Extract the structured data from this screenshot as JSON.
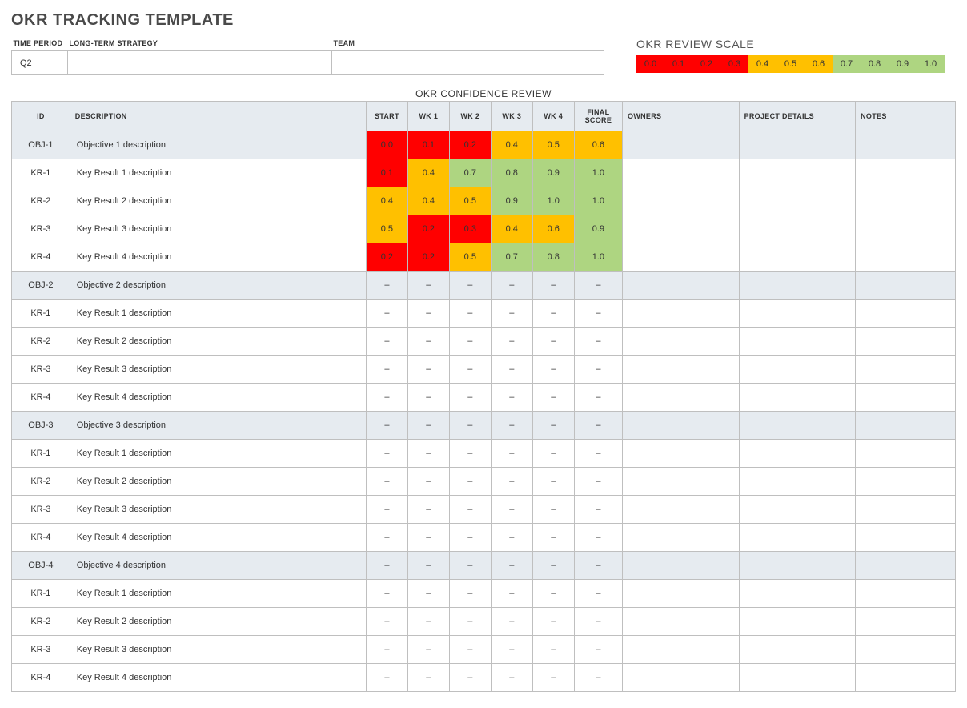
{
  "title": "OKR TRACKING TEMPLATE",
  "meta": {
    "headers": {
      "time_period": "TIME PERIOD",
      "strategy": "LONG-TERM STRATEGY",
      "team": "TEAM"
    },
    "values": {
      "time_period": "Q2",
      "strategy": "",
      "team": ""
    },
    "col_widths": {
      "time_period": 70,
      "strategy": 330,
      "team": 340
    }
  },
  "scale": {
    "title": "OKR REVIEW SCALE",
    "items": [
      {
        "label": "0.0",
        "color": "#ff0000"
      },
      {
        "label": "0.1",
        "color": "#ff0000"
      },
      {
        "label": "0.2",
        "color": "#ff0000"
      },
      {
        "label": "0.3",
        "color": "#ff0000"
      },
      {
        "label": "0.4",
        "color": "#ffc000"
      },
      {
        "label": "0.5",
        "color": "#ffc000"
      },
      {
        "label": "0.6",
        "color": "#ffc000"
      },
      {
        "label": "0.7",
        "color": "#aed581"
      },
      {
        "label": "0.8",
        "color": "#aed581"
      },
      {
        "label": "0.9",
        "color": "#aed581"
      },
      {
        "label": "1.0",
        "color": "#aed581"
      }
    ]
  },
  "confidence_title": "OKR CONFIDENCE REVIEW",
  "columns": {
    "id": "ID",
    "description": "DESCRIPTION",
    "start": "START",
    "wk1": "WK 1",
    "wk2": "WK 2",
    "wk3": "WK 3",
    "wk4": "WK 4",
    "final": "FINAL SCORE",
    "owners": "OWNERS",
    "details": "PROJECT DETAILS",
    "notes": "NOTES"
  },
  "color_map": {
    "red": "#ff0000",
    "orange": "#ffc000",
    "green": "#aed581",
    "none": "transparent"
  },
  "score_thresholds": {
    "red_max": 0.3,
    "orange_max": 0.6
  },
  "empty_placeholder": "–",
  "rows": [
    {
      "type": "obj",
      "id": "OBJ-1",
      "desc": "Objective 1 description",
      "scores": [
        "0.0",
        "0.1",
        "0.2",
        "0.4",
        "0.5",
        "0.6"
      ],
      "owners": "",
      "details": "",
      "notes": ""
    },
    {
      "type": "kr",
      "id": "KR-1",
      "desc": "Key Result 1 description",
      "scores": [
        "0.1",
        "0.4",
        "0.7",
        "0.8",
        "0.9",
        "1.0"
      ]
    },
    {
      "type": "kr",
      "id": "KR-2",
      "desc": "Key Result 2 description",
      "scores": [
        "0.4",
        "0.4",
        "0.5",
        "0.9",
        "1.0",
        "1.0"
      ]
    },
    {
      "type": "kr",
      "id": "KR-3",
      "desc": "Key Result 3 description",
      "scores": [
        "0.5",
        "0.2",
        "0.3",
        "0.4",
        "0.6",
        "0.9"
      ]
    },
    {
      "type": "kr",
      "id": "KR-4",
      "desc": "Key Result 4 description",
      "scores": [
        "0.2",
        "0.2",
        "0.5",
        "0.7",
        "0.8",
        "1.0"
      ]
    },
    {
      "type": "obj",
      "id": "OBJ-2",
      "desc": "Objective 2 description",
      "scores": [
        null,
        null,
        null,
        null,
        null,
        null
      ]
    },
    {
      "type": "kr",
      "id": "KR-1",
      "desc": "Key Result 1 description",
      "scores": [
        null,
        null,
        null,
        null,
        null,
        null
      ]
    },
    {
      "type": "kr",
      "id": "KR-2",
      "desc": "Key Result 2 description",
      "scores": [
        null,
        null,
        null,
        null,
        null,
        null
      ]
    },
    {
      "type": "kr",
      "id": "KR-3",
      "desc": "Key Result 3 description",
      "scores": [
        null,
        null,
        null,
        null,
        null,
        null
      ]
    },
    {
      "type": "kr",
      "id": "KR-4",
      "desc": "Key Result 4 description",
      "scores": [
        null,
        null,
        null,
        null,
        null,
        null
      ]
    },
    {
      "type": "obj",
      "id": "OBJ-3",
      "desc": "Objective 3 description",
      "scores": [
        null,
        null,
        null,
        null,
        null,
        null
      ]
    },
    {
      "type": "kr",
      "id": "KR-1",
      "desc": "Key Result 1 description",
      "scores": [
        null,
        null,
        null,
        null,
        null,
        null
      ]
    },
    {
      "type": "kr",
      "id": "KR-2",
      "desc": "Key Result 2 description",
      "scores": [
        null,
        null,
        null,
        null,
        null,
        null
      ]
    },
    {
      "type": "kr",
      "id": "KR-3",
      "desc": "Key Result 3 description",
      "scores": [
        null,
        null,
        null,
        null,
        null,
        null
      ]
    },
    {
      "type": "kr",
      "id": "KR-4",
      "desc": "Key Result 4 description",
      "scores": [
        null,
        null,
        null,
        null,
        null,
        null
      ]
    },
    {
      "type": "obj",
      "id": "OBJ-4",
      "desc": "Objective 4 description",
      "scores": [
        null,
        null,
        null,
        null,
        null,
        null
      ]
    },
    {
      "type": "kr",
      "id": "KR-1",
      "desc": "Key Result 1 description",
      "scores": [
        null,
        null,
        null,
        null,
        null,
        null
      ]
    },
    {
      "type": "kr",
      "id": "KR-2",
      "desc": "Key Result 2 description",
      "scores": [
        null,
        null,
        null,
        null,
        null,
        null
      ]
    },
    {
      "type": "kr",
      "id": "KR-3",
      "desc": "Key Result 3 description",
      "scores": [
        null,
        null,
        null,
        null,
        null,
        null
      ]
    },
    {
      "type": "kr",
      "id": "KR-4",
      "desc": "Key Result 4 description",
      "scores": [
        null,
        null,
        null,
        null,
        null,
        null
      ]
    }
  ]
}
